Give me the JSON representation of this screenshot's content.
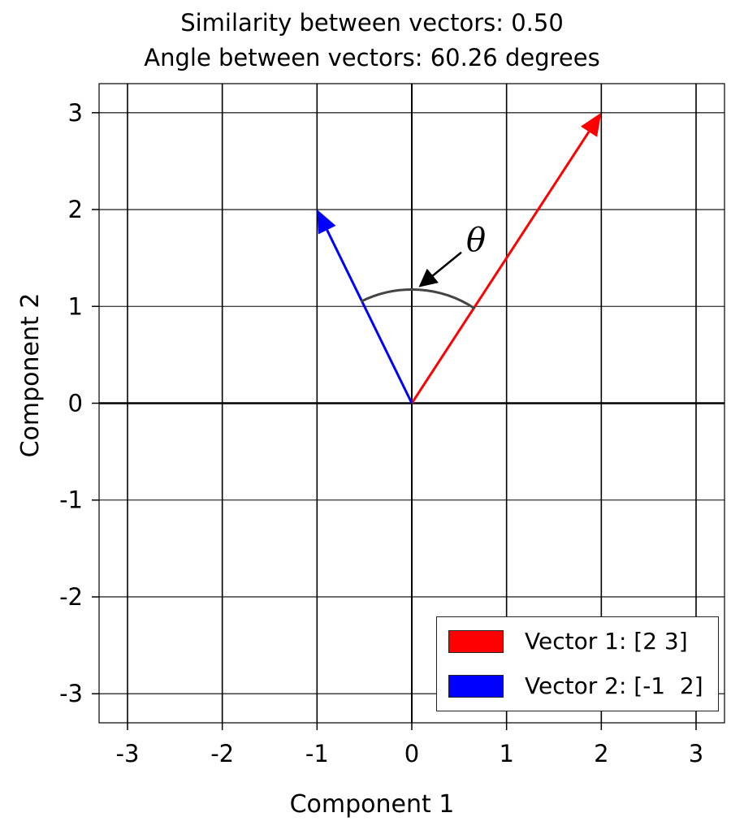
{
  "chart_data": {
    "type": "vector-plot",
    "title": [
      "Similarity between vectors: 0.50",
      "Angle between vectors: 60.26 degrees"
    ],
    "xlabel": "Component 1",
    "ylabel": "Component 2",
    "xlim": [
      -3.3,
      3.3
    ],
    "ylim": [
      -3.3,
      3.3
    ],
    "xticks": [
      -3,
      -2,
      -1,
      0,
      1,
      2,
      3
    ],
    "yticks": [
      -3,
      -2,
      -1,
      0,
      1,
      2,
      3
    ],
    "xtick_labels": [
      "-3",
      "-2",
      "-1",
      "0",
      "1",
      "2",
      "3"
    ],
    "ytick_labels": [
      "-3",
      "-2",
      "-1",
      "0",
      "1",
      "2",
      "3"
    ],
    "grid": true,
    "legend_position": "lower-right",
    "series": [
      {
        "name": "Vector 1: [2 3]",
        "x": [
          0,
          2
        ],
        "y": [
          0,
          3
        ],
        "color": "#ff0000"
      },
      {
        "name": "Vector 2: [-1  2]",
        "x": [
          0,
          -1
        ],
        "y": [
          0,
          2
        ],
        "color": "#0000ff"
      }
    ],
    "angle_annotation": {
      "label": "θ",
      "radius": 1.2,
      "arc_color": "#444444",
      "from_vector": [
        2,
        3
      ],
      "to_vector": [
        -1,
        2
      ]
    }
  }
}
